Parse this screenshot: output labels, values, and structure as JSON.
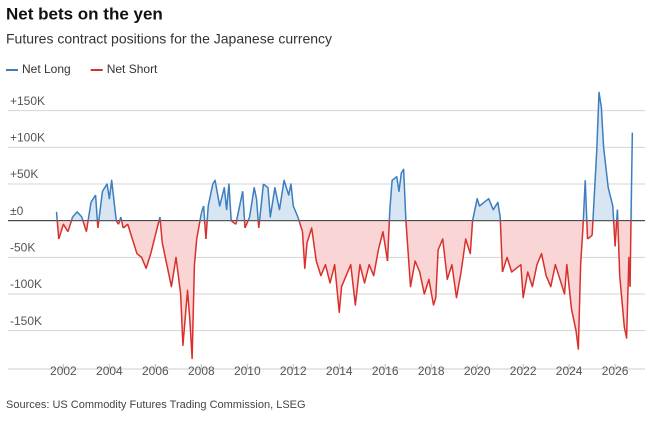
{
  "chart_data": {
    "type": "line",
    "title": "Net bets on the yen",
    "subtitle": "Futures contract positions for the Japanese currency",
    "source": "Sources: US Commodity Futures Trading Commission, LSEG",
    "x": [
      2001.7,
      2001.8,
      2002.0,
      2002.2,
      2002.4,
      2002.6,
      2002.8,
      2003.0,
      2003.2,
      2003.4,
      2003.5,
      2003.7,
      2003.9,
      2004.0,
      2004.1,
      2004.3,
      2004.4,
      2004.5,
      2004.6,
      2004.8,
      2005.0,
      2005.2,
      2005.4,
      2005.6,
      2005.8,
      2006.0,
      2006.2,
      2006.3,
      2006.5,
      2006.7,
      2006.9,
      2007.1,
      2007.2,
      2007.4,
      2007.5,
      2007.6,
      2007.7,
      2007.8,
      2008.0,
      2008.1,
      2008.2,
      2008.3,
      2008.5,
      2008.6,
      2008.8,
      2009.0,
      2009.1,
      2009.2,
      2009.3,
      2009.5,
      2009.7,
      2009.8,
      2009.9,
      2010.1,
      2010.3,
      2010.4,
      2010.5,
      2010.7,
      2010.9,
      2011.0,
      2011.2,
      2011.4,
      2011.6,
      2011.8,
      2011.9,
      2012.0,
      2012.2,
      2012.4,
      2012.5,
      2012.6,
      2012.8,
      2013.0,
      2013.2,
      2013.4,
      2013.6,
      2013.8,
      2014.0,
      2014.1,
      2014.3,
      2014.5,
      2014.7,
      2014.9,
      2015.1,
      2015.3,
      2015.5,
      2015.7,
      2015.9,
      2016.1,
      2016.2,
      2016.3,
      2016.5,
      2016.6,
      2016.7,
      2016.8,
      2016.9,
      2017.0,
      2017.1,
      2017.3,
      2017.5,
      2017.7,
      2017.9,
      2018.1,
      2018.2,
      2018.3,
      2018.5,
      2018.7,
      2018.9,
      2019.1,
      2019.3,
      2019.5,
      2019.7,
      2019.8,
      2020.0,
      2020.1,
      2020.3,
      2020.5,
      2020.7,
      2020.9,
      2021.0,
      2021.1,
      2021.3,
      2021.5,
      2021.7,
      2021.9,
      2022.0,
      2022.2,
      2022.4,
      2022.6,
      2022.8,
      2023.0,
      2023.2,
      2023.4,
      2023.6,
      2023.8,
      2023.9,
      2024.1,
      2024.3,
      2024.4,
      2024.5,
      2024.6,
      2024.7,
      2024.8,
      2025.0,
      2025.2,
      2025.3,
      2025.4,
      2025.5,
      2025.7,
      2025.9,
      2026.0,
      2026.1,
      2026.2,
      2026.4,
      2026.5,
      2026.6,
      2026.65,
      2026.7,
      2026.75
    ],
    "series": [
      {
        "name": "Net Long",
        "color": "#3d7ebf",
        "fill": "#d8e6f3",
        "values": [
          12,
          null,
          null,
          null,
          5,
          12,
          5,
          null,
          25,
          35,
          null,
          40,
          50,
          30,
          55,
          0,
          null,
          5,
          null,
          null,
          null,
          null,
          null,
          null,
          null,
          null,
          5,
          null,
          null,
          null,
          null,
          null,
          null,
          null,
          null,
          null,
          null,
          null,
          10,
          20,
          null,
          20,
          50,
          55,
          20,
          45,
          15,
          50,
          0,
          null,
          25,
          40,
          null,
          5,
          45,
          30,
          null,
          50,
          45,
          5,
          45,
          15,
          55,
          35,
          50,
          20,
          5,
          null,
          null,
          null,
          null,
          null,
          null,
          null,
          null,
          null,
          null,
          null,
          null,
          null,
          null,
          null,
          null,
          null,
          null,
          null,
          null,
          null,
          15,
          55,
          60,
          40,
          65,
          70,
          0,
          null,
          null,
          null,
          null,
          null,
          null,
          null,
          null,
          null,
          null,
          null,
          null,
          null,
          null,
          null,
          null,
          0,
          30,
          20,
          25,
          30,
          15,
          25,
          5,
          null,
          null,
          null,
          null,
          null,
          null,
          null,
          null,
          null,
          null,
          null,
          null,
          null,
          null,
          null,
          null,
          null,
          null,
          null,
          null,
          null,
          55,
          null,
          null,
          95,
          175,
          155,
          100,
          45,
          20,
          null,
          15,
          null,
          null,
          null,
          null,
          null,
          20,
          120
        ]
      },
      {
        "name": "Net Short",
        "color": "#d9302b",
        "fill": "#f9d5d5",
        "values": [
          null,
          -25,
          -5,
          -15,
          null,
          null,
          null,
          -15,
          null,
          null,
          -10,
          null,
          null,
          null,
          null,
          0,
          -5,
          null,
          -10,
          -5,
          -25,
          -45,
          -50,
          -65,
          -45,
          -20,
          null,
          -30,
          -60,
          -90,
          -50,
          -100,
          -170,
          -95,
          -135,
          -188,
          -60,
          -25,
          null,
          null,
          -25,
          null,
          null,
          null,
          null,
          null,
          null,
          null,
          0,
          -5,
          null,
          null,
          -10,
          null,
          null,
          null,
          -10,
          null,
          null,
          null,
          null,
          null,
          null,
          null,
          null,
          null,
          null,
          -15,
          -65,
          -30,
          -10,
          -55,
          -75,
          -60,
          -85,
          -60,
          -125,
          -90,
          -75,
          -60,
          -115,
          -60,
          -85,
          -60,
          -75,
          -40,
          -15,
          -55,
          null,
          null,
          null,
          null,
          null,
          null,
          0,
          -45,
          -90,
          -55,
          -70,
          -100,
          -80,
          -115,
          -105,
          -40,
          -25,
          -80,
          -60,
          -105,
          -70,
          -25,
          -45,
          0,
          null,
          null,
          null,
          null,
          null,
          null,
          null,
          -70,
          -50,
          -70,
          -65,
          -60,
          -105,
          -70,
          -90,
          -60,
          -45,
          -75,
          -90,
          -60,
          -80,
          -100,
          -60,
          -120,
          -150,
          -175,
          -60,
          -10,
          null,
          -25,
          -20,
          null,
          null,
          null,
          null,
          null,
          null,
          -35,
          null,
          -75,
          -145,
          -160,
          -50,
          -90,
          null,
          null
        ]
      }
    ],
    "xlim": [
      2001.2,
      2027.3
    ],
    "xticks": [
      2002,
      2004,
      2006,
      2008,
      2010,
      2012,
      2014,
      2016,
      2018,
      2020,
      2022,
      2024,
      2026
    ],
    "ylim": [
      -190,
      185
    ],
    "yticks": [
      {
        "value": 150000,
        "label": "+150K"
      },
      {
        "value": 100000,
        "label": "+100K"
      },
      {
        "value": 50000,
        "label": "+50K"
      },
      {
        "value": 0,
        "label": "±0"
      },
      {
        "value": -50000,
        "label": "-50K"
      },
      {
        "value": -100000,
        "label": "-100K"
      },
      {
        "value": -150000,
        "label": "-150K"
      }
    ],
    "ytick_unit": 1000,
    "grid": true
  }
}
